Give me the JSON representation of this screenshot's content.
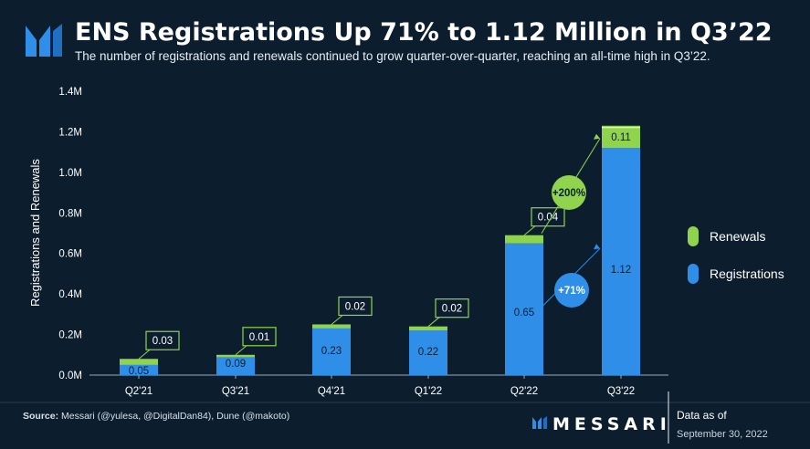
{
  "title": "ENS Registrations Up 71% to 1.12 Million in Q3’22",
  "subtitle": "The number of registrations and renewals continued to grow quarter-over-quarter, reaching an all-time high in Q3’22.",
  "source_label": "Source:",
  "source_text": " Messari (@yulesa, @DigitalDan84), Dune (@makoto)",
  "brand": "MESSARI",
  "data_as_of_label": "Data as of",
  "data_as_of_date": "September 30, 2022",
  "colors": {
    "background": "#0c1e2e",
    "registrations": "#2f8fe8",
    "renewals": "#8fd44c"
  },
  "chart_data": {
    "type": "bar",
    "stacked": true,
    "categories": [
      "Q2'21",
      "Q3'21",
      "Q4'21",
      "Q1'22",
      "Q2'22",
      "Q3'22"
    ],
    "series": [
      {
        "name": "Registrations",
        "values": [
          0.05,
          0.09,
          0.23,
          0.22,
          0.65,
          1.12
        ],
        "labels": [
          "0.05",
          "0.09",
          "0.23",
          "0.22",
          "0.65",
          "1.12"
        ]
      },
      {
        "name": "Renewals",
        "values": [
          0.03,
          0.01,
          0.02,
          0.02,
          0.04,
          0.11
        ],
        "labels": [
          "0.03",
          "0.01",
          "0.02",
          "0.02",
          "0.04",
          "0.11"
        ]
      }
    ],
    "ylabel": "Registrations and Renewals",
    "ylim": [
      0,
      1.4
    ],
    "yticks": [
      0,
      0.2,
      0.4,
      0.6,
      0.8,
      1.0,
      1.2,
      1.4
    ],
    "ytick_labels": [
      "0.0M",
      "0.2M",
      "0.4M",
      "0.6M",
      "0.8M",
      "1.0M",
      "1.2M",
      "1.4M"
    ],
    "legend": {
      "placement": "right",
      "items": [
        "Renewals",
        "Registrations"
      ]
    },
    "annotations": [
      {
        "label": "+200%",
        "series": "Renewals",
        "from": "Q2'22",
        "to": "Q3'22"
      },
      {
        "label": "+71%",
        "series": "Registrations",
        "from": "Q2'22",
        "to": "Q3'22"
      }
    ],
    "grid": false
  }
}
